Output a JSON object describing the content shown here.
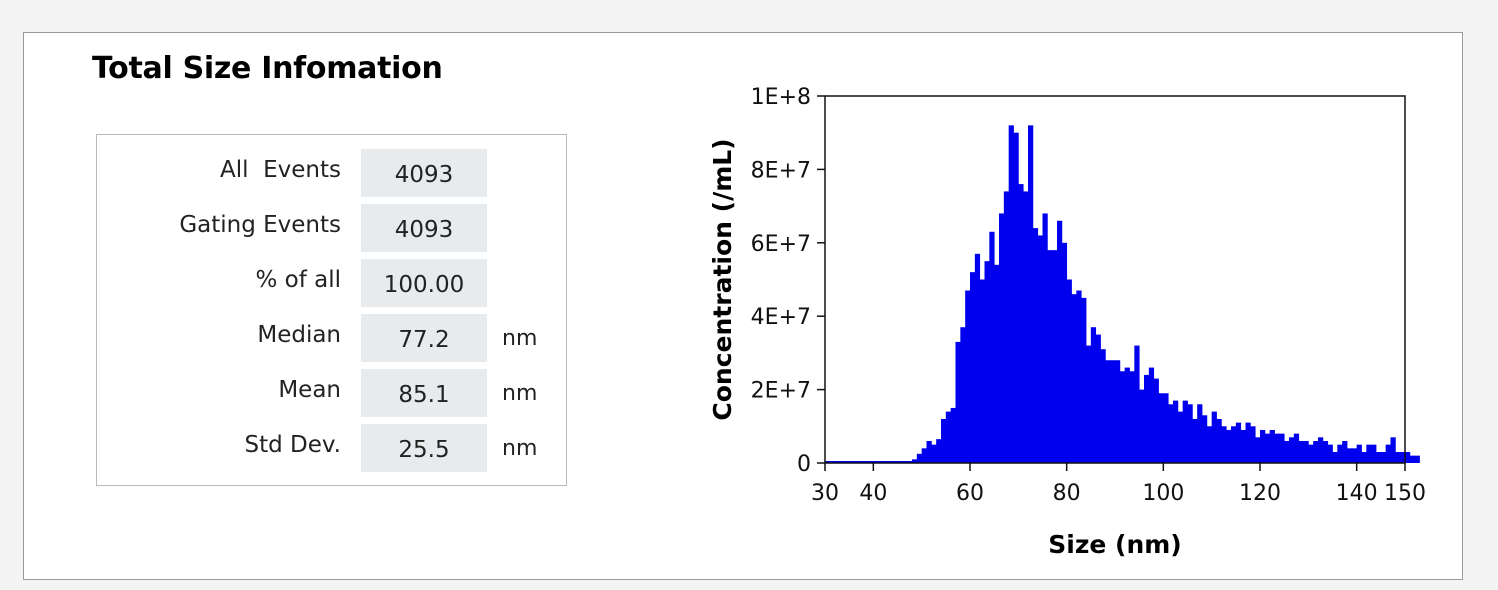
{
  "panel": {
    "title": "Total Size Infomation"
  },
  "stats": [
    {
      "label": "All  Events",
      "value": "4093",
      "unit": ""
    },
    {
      "label": "Gating Events",
      "value": "4093",
      "unit": ""
    },
    {
      "label": "% of all",
      "value": "100.00",
      "unit": ""
    },
    {
      "label": "Median",
      "value": "77.2",
      "unit": "nm"
    },
    {
      "label": "Mean",
      "value": "85.1",
      "unit": "nm"
    },
    {
      "label": "Std Dev.",
      "value": "25.5",
      "unit": "nm"
    }
  ],
  "chart_data": {
    "type": "bar",
    "title": "",
    "xlabel": "Size (nm)",
    "ylabel": "Concentration (/mL)",
    "xlim": [
      30,
      150
    ],
    "ylim": [
      0,
      100000000
    ],
    "x_ticks": [
      30,
      40,
      60,
      80,
      100,
      120,
      140,
      150
    ],
    "x_tick_labels": [
      "30",
      "40",
      "60",
      "80",
      "100",
      "120",
      "140",
      "150"
    ],
    "y_ticks": [
      0,
      20000000,
      40000000,
      60000000,
      80000000,
      100000000
    ],
    "y_tick_labels": [
      "0",
      "2E+7",
      "4E+7",
      "6E+7",
      "8E+7",
      "1E+8"
    ],
    "grid": false,
    "legend": "none",
    "bar_color": "#0000ee",
    "bin_width": 1,
    "bin_start": 30,
    "values": [
      0,
      0,
      0,
      0,
      0,
      0,
      0,
      0,
      0,
      0,
      0,
      0,
      0,
      0,
      0,
      0,
      0,
      0,
      1000000,
      2500000,
      4000000,
      6000000,
      5000000,
      6500000,
      12000000,
      14000000,
      15000000,
      33000000,
      37000000,
      47000000,
      52000000,
      57000000,
      50000000,
      55000000,
      63000000,
      54000000,
      68000000,
      74000000,
      92000000,
      90000000,
      76000000,
      74000000,
      92000000,
      64000000,
      62000000,
      68000000,
      58000000,
      58000000,
      66000000,
      60000000,
      50000000,
      46000000,
      47000000,
      45000000,
      32000000,
      37000000,
      35000000,
      31000000,
      28000000,
      28000000,
      28000000,
      25000000,
      26000000,
      25000000,
      32000000,
      20000000,
      24000000,
      26000000,
      23000000,
      19000000,
      19000000,
      16000000,
      17000000,
      14000000,
      17000000,
      16000000,
      12000000,
      16000000,
      13000000,
      10000000,
      14000000,
      12000000,
      10000000,
      9000000,
      10000000,
      11000000,
      9000000,
      11000000,
      10000000,
      7000000,
      9000000,
      8000000,
      9000000,
      8000000,
      8000000,
      6000000,
      7000000,
      8000000,
      6000000,
      6000000,
      5000000,
      6000000,
      7000000,
      6000000,
      5000000,
      3000000,
      5000000,
      6000000,
      4000000,
      4000000,
      5000000,
      3000000,
      5000000,
      5000000,
      3000000,
      3000000,
      5000000,
      7000000,
      3000000,
      3000000,
      3000000,
      2000000,
      2000000,
      0
    ]
  }
}
